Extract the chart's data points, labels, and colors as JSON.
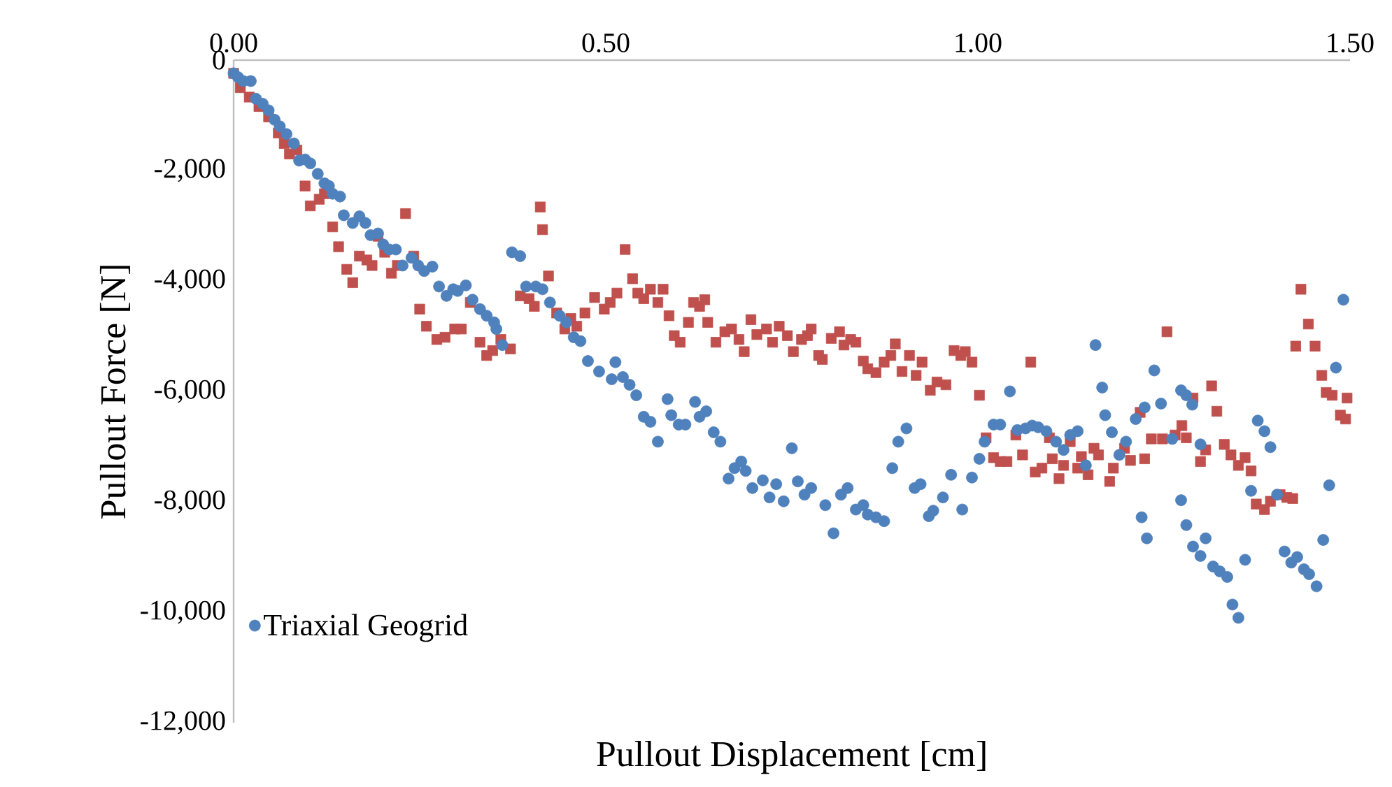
{
  "chart_data": {
    "type": "scatter",
    "xlabel": "Pullout Displacement [cm]",
    "ylabel": "Pullout Force [N]",
    "xlim": [
      0,
      1.5
    ],
    "ylim": [
      -12000,
      0
    ],
    "xticks": [
      {
        "value": 0,
        "label": "0.00"
      },
      {
        "value": 0.5,
        "label": "0.50"
      },
      {
        "value": 1,
        "label": "1.00"
      },
      {
        "value": 1.5,
        "label": "1.50"
      }
    ],
    "yticks": [
      {
        "value": -12000,
        "label": "-12,000"
      },
      {
        "value": -10000,
        "label": "-10,000"
      },
      {
        "value": -8000,
        "label": "-8,000"
      },
      {
        "value": -6000,
        "label": "-6,000"
      },
      {
        "value": -4000,
        "label": "-4,000"
      },
      {
        "value": -2000,
        "label": "-2,000"
      },
      0
    ],
    "legend": "bottom left",
    "series": [
      {
        "color": "#c0504d",
        "marker": "square",
        "x": [
          0,
          0.009,
          0.021,
          0.034,
          0.047,
          0.06,
          0.068,
          0.075,
          0.085,
          0.096,
          0.103,
          0.115,
          0.122,
          0.133,
          0.141,
          0.152,
          0.16,
          0.169,
          0.179,
          0.186,
          0.194,
          0.203,
          0.212,
          0.22,
          0.231,
          0.242,
          0.25,
          0.259,
          0.273,
          0.284,
          0.297,
          0.306,
          0.318,
          0.331,
          0.34,
          0.348,
          0.359,
          0.372,
          0.385,
          0.397,
          0.404,
          0.412,
          0.415,
          0.423,
          0.434,
          0.445,
          0.453,
          0.461,
          0.472,
          0.485,
          0.498,
          0.506,
          0.515,
          0.526,
          0.536,
          0.543,
          0.551,
          0.56,
          0.57,
          0.577,
          0.585,
          0.592,
          0.6,
          0.611,
          0.618,
          0.626,
          0.633,
          0.637,
          0.648,
          0.66,
          0.669,
          0.679,
          0.686,
          0.695,
          0.703,
          0.716,
          0.724,
          0.733,
          0.744,
          0.752,
          0.763,
          0.771,
          0.776,
          0.786,
          0.791,
          0.803,
          0.814,
          0.82,
          0.829,
          0.836,
          0.846,
          0.852,
          0.863,
          0.874,
          0.883,
          0.889,
          0.898,
          0.908,
          0.917,
          0.925,
          0.936,
          0.945,
          0.957,
          0.968,
          0.977,
          0.983,
          0.992,
          1.002,
          1.011,
          1.021,
          1.03,
          1.039,
          1.051,
          1.06,
          1.071,
          1.077,
          1.086,
          1.096,
          1.1,
          1.109,
          1.115,
          1.124,
          1.134,
          1.139,
          1.148,
          1.156,
          1.162,
          1.177,
          1.182,
          1.197,
          1.205,
          1.218,
          1.224,
          1.233,
          1.248,
          1.254,
          1.265,
          1.274,
          1.28,
          1.289,
          1.299,
          1.306,
          1.314,
          1.321,
          1.331,
          1.34,
          1.35,
          1.359,
          1.367,
          1.374,
          1.385,
          1.393,
          1.406,
          1.415,
          1.423,
          1.427,
          1.434,
          1.444,
          1.453,
          1.462,
          1.468,
          1.476,
          1.487,
          1.494,
          1.496
        ],
        "values": [
          -240,
          -500,
          -670,
          -840,
          -1030,
          -1320,
          -1510,
          -1700,
          -1630,
          -2280,
          -2640,
          -2520,
          -2420,
          -3020,
          -3380,
          -3790,
          -4030,
          -3550,
          -3620,
          -3720,
          -3190,
          -3480,
          -3860,
          -3720,
          -2780,
          -3550,
          -4510,
          -4820,
          -5060,
          -5020,
          -4870,
          -4870,
          -4390,
          -5110,
          -5350,
          -5260,
          -5060,
          -5230,
          -4270,
          -4320,
          -4460,
          -2660,
          -3070,
          -3910,
          -4580,
          -4870,
          -4680,
          -4820,
          -4580,
          -4300,
          -4510,
          -4390,
          -4220,
          -3430,
          -3960,
          -4220,
          -4320,
          -4150,
          -4390,
          -4150,
          -4630,
          -4990,
          -5110,
          -4750,
          -4390,
          -4460,
          -4340,
          -4750,
          -5110,
          -4920,
          -4870,
          -5060,
          -5280,
          -4700,
          -4970,
          -4870,
          -5110,
          -4820,
          -4990,
          -5280,
          -5060,
          -4990,
          -4870,
          -5350,
          -5420,
          -5040,
          -4920,
          -5160,
          -5060,
          -5110,
          -5450,
          -5590,
          -5660,
          -5470,
          -5350,
          -5140,
          -5640,
          -5350,
          -5710,
          -5470,
          -5980,
          -5830,
          -5880,
          -5260,
          -5350,
          -5280,
          -5470,
          -6070,
          -6840,
          -7200,
          -7270,
          -7270,
          -6790,
          -7150,
          -5470,
          -7460,
          -7390,
          -6840,
          -7220,
          -7580,
          -7340,
          -6910,
          -7390,
          -7180,
          -7510,
          -7030,
          -7150,
          -7630,
          -7390,
          -7030,
          -7250,
          -6380,
          -7220,
          -6860,
          -6860,
          -4920,
          -6790,
          -6620,
          -6840,
          -6120,
          -7270,
          -7060,
          -5900,
          -6360,
          -6960,
          -7150,
          -7340,
          -7200,
          -7440,
          -8040,
          -8140,
          -7990,
          -7870,
          -7920,
          -7940,
          -5180,
          -4150,
          -4780,
          -5180,
          -5710,
          -6020,
          -6070,
          -6430,
          -6500,
          -6120
        ]
      },
      {
        "name": "Triaxial Geogrid",
        "color": "#4f81bd",
        "marker": "circle",
        "x": [
          0,
          0.006,
          0.013,
          0.023,
          0.03,
          0.039,
          0.047,
          0.055,
          0.062,
          0.071,
          0.081,
          0.088,
          0.096,
          0.103,
          0.113,
          0.122,
          0.128,
          0.133,
          0.143,
          0.148,
          0.16,
          0.169,
          0.177,
          0.184,
          0.194,
          0.201,
          0.209,
          0.218,
          0.227,
          0.239,
          0.248,
          0.256,
          0.267,
          0.276,
          0.286,
          0.295,
          0.301,
          0.312,
          0.321,
          0.331,
          0.34,
          0.35,
          0.353,
          0.361,
          0.374,
          0.385,
          0.393,
          0.406,
          0.415,
          0.425,
          0.438,
          0.447,
          0.457,
          0.466,
          0.476,
          0.491,
          0.508,
          0.513,
          0.523,
          0.532,
          0.541,
          0.551,
          0.56,
          0.57,
          0.583,
          0.588,
          0.598,
          0.607,
          0.62,
          0.626,
          0.635,
          0.645,
          0.654,
          0.665,
          0.673,
          0.682,
          0.688,
          0.697,
          0.711,
          0.72,
          0.729,
          0.739,
          0.75,
          0.758,
          0.767,
          0.776,
          0.795,
          0.806,
          0.816,
          0.825,
          0.836,
          0.846,
          0.852,
          0.863,
          0.874,
          0.885,
          0.893,
          0.904,
          0.915,
          0.923,
          0.934,
          0.94,
          0.953,
          0.964,
          0.979,
          0.992,
          1.002,
          1.009,
          1.021,
          1.03,
          1.043,
          1.053,
          1.064,
          1.073,
          1.081,
          1.092,
          1.105,
          1.115,
          1.124,
          1.134,
          1.145,
          1.158,
          1.167,
          1.171,
          1.18,
          1.19,
          1.199,
          1.212,
          1.22,
          1.224,
          1.227,
          1.237,
          1.246,
          1.261,
          1.273,
          1.273,
          1.28,
          1.28,
          1.288,
          1.289,
          1.299,
          1.299,
          1.306,
          1.316,
          1.325,
          1.335,
          1.342,
          1.35,
          1.359,
          1.367,
          1.376,
          1.385,
          1.393,
          1.402,
          1.412,
          1.421,
          1.429,
          1.438,
          1.445,
          1.455,
          1.464,
          1.472,
          1.481,
          1.491
        ],
        "values": [
          -240,
          -310,
          -380,
          -380,
          -700,
          -790,
          -910,
          -1080,
          -1200,
          -1340,
          -1510,
          -1820,
          -1800,
          -1870,
          -2060,
          -2230,
          -2280,
          -2420,
          -2470,
          -2810,
          -2950,
          -2830,
          -2950,
          -3170,
          -3140,
          -3340,
          -3430,
          -3430,
          -3720,
          -3580,
          -3720,
          -3820,
          -3740,
          -4100,
          -4270,
          -4150,
          -4180,
          -4080,
          -4340,
          -4510,
          -4630,
          -4750,
          -4870,
          -5160,
          -3480,
          -3550,
          -4100,
          -4100,
          -4150,
          -4390,
          -4630,
          -4750,
          -5020,
          -5090,
          -5450,
          -5640,
          -5780,
          -5470,
          -5740,
          -5880,
          -6070,
          -6460,
          -6550,
          -6910,
          -6140,
          -6430,
          -6600,
          -6600,
          -6190,
          -6460,
          -6360,
          -6740,
          -6910,
          -7580,
          -7390,
          -7270,
          -7440,
          -7750,
          -7610,
          -7920,
          -7680,
          -7990,
          -7030,
          -7630,
          -7870,
          -7750,
          -8060,
          -8570,
          -7870,
          -7750,
          -8140,
          -8060,
          -8230,
          -8280,
          -8350,
          -7390,
          -6910,
          -6670,
          -7750,
          -7680,
          -8260,
          -8160,
          -7920,
          -7510,
          -8140,
          -7560,
          -7220,
          -6910,
          -6600,
          -6600,
          -6000,
          -6700,
          -6670,
          -6620,
          -6650,
          -6720,
          -6910,
          -7060,
          -6790,
          -6720,
          -7340,
          -5160,
          -5930,
          -6430,
          -6740,
          -7150,
          -6910,
          -6500,
          -8280,
          -6290,
          -8660,
          -5620,
          -6220,
          -6860,
          -5980,
          -7970,
          -6070,
          -8420,
          -6240,
          -8810,
          -6960,
          -8980,
          -8660,
          -9170,
          -9260,
          -9360,
          -9860,
          -10100,
          -9050,
          -7800,
          -6530,
          -6720,
          -7010,
          -7870,
          -8900,
          -9100,
          -9000,
          -9220,
          -9310,
          -9530,
          -8690,
          -7700,
          -5570,
          -4340
        ]
      }
    ]
  }
}
